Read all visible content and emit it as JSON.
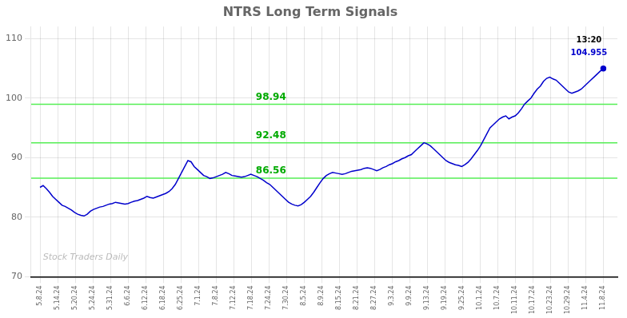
{
  "chart_data": {
    "type": "line",
    "title": "NTRS Long Term Signals",
    "color": "#0000cc",
    "grid": true,
    "x": [
      0,
      0.1788,
      0.3575,
      0.5363,
      0.7151,
      0.8939,
      1.0726,
      1.2514,
      1.4302,
      1.6089,
      1.7877,
      1.9665,
      2.1453,
      2.324,
      2.5028,
      2.6816,
      2.8603,
      3.0391,
      3.2179,
      3.3966,
      3.5754,
      3.7542,
      3.933,
      4.1117,
      4.2905,
      4.4693,
      4.648,
      4.8268,
      5.0056,
      5.1844,
      5.3631,
      5.5419,
      5.7207,
      5.8994,
      6.0782,
      6.257,
      6.4358,
      6.6145,
      6.7933,
      6.9721,
      7.1508,
      7.3296,
      7.5084,
      7.6872,
      7.8659,
      8.0447,
      8.2235,
      8.4022,
      8.581,
      8.7598,
      8.9385,
      9.1173,
      9.2961,
      9.4749,
      9.6536,
      9.8324,
      10.0112,
      10.1899,
      10.3687,
      10.5475,
      10.7263,
      10.905,
      11.0838,
      11.2626,
      11.4413,
      11.6201,
      11.7989,
      11.9777,
      12.1564,
      12.3352,
      12.514,
      12.6927,
      12.8715,
      13.0503,
      13.2291,
      13.4078,
      13.5866,
      13.7654,
      13.9441,
      14.1229,
      14.3017,
      14.4804,
      14.6592,
      14.838,
      15.0168,
      15.1955,
      15.3743,
      15.5531,
      15.7318,
      15.9106,
      16.0894,
      16.2682,
      16.4469,
      16.6257,
      16.8045,
      16.9832,
      17.162,
      17.3408,
      17.5196,
      17.6983,
      17.8771,
      18.0559,
      18.2346,
      18.4134,
      18.5922,
      18.7709,
      18.9497,
      19.1285,
      19.3073,
      19.486,
      19.6648,
      19.8436,
      20.0223,
      20.2011,
      20.3799,
      20.5587,
      20.7374,
      20.9162,
      21.095,
      21.2737,
      21.4525,
      21.6313,
      21.8101,
      21.9888,
      22.1676,
      22.3464,
      22.5251,
      22.7039,
      22.8827,
      23.0615,
      23.2402,
      23.419,
      23.5978,
      23.7765,
      23.9553,
      24.1341,
      24.3128,
      24.4916,
      24.6704,
      24.8492,
      25.0279,
      25.2067,
      25.3855,
      25.5642,
      25.743,
      25.9218,
      26.1006,
      26.2793,
      26.4581,
      26.6369,
      26.8156,
      26.9944,
      27.1732,
      27.352,
      27.5307,
      27.7095,
      27.8883,
      28.067,
      28.2458,
      28.4246,
      28.6034,
      28.7821,
      28.9609,
      29.1397,
      29.3184,
      29.4972,
      29.676,
      29.8547,
      30.0335,
      30.2123,
      30.3911,
      30.5698,
      30.7486,
      30.9274,
      31.1061,
      31.2849,
      31.4637,
      31.6425,
      31.8212,
      32
    ],
    "values": [
      85.0,
      85.3,
      84.8,
      84.2,
      83.5,
      83.0,
      82.5,
      82.0,
      81.8,
      81.5,
      81.2,
      80.8,
      80.5,
      80.3,
      80.2,
      80.5,
      81.0,
      81.3,
      81.5,
      81.7,
      81.8,
      82.0,
      82.2,
      82.3,
      82.5,
      82.4,
      82.3,
      82.2,
      82.3,
      82.5,
      82.7,
      82.8,
      83.0,
      83.2,
      83.5,
      83.3,
      83.2,
      83.4,
      83.6,
      83.8,
      84.0,
      84.3,
      84.8,
      85.5,
      86.5,
      87.5,
      88.5,
      89.5,
      89.3,
      88.5,
      88.0,
      87.5,
      87.0,
      86.8,
      86.5,
      86.6,
      86.8,
      87.0,
      87.2,
      87.5,
      87.3,
      87.0,
      86.9,
      86.8,
      86.7,
      86.8,
      87.0,
      87.2,
      87.0,
      86.8,
      86.5,
      86.2,
      85.8,
      85.5,
      85.0,
      84.5,
      84.0,
      83.5,
      83.0,
      82.5,
      82.2,
      82.0,
      81.9,
      82.1,
      82.5,
      83.0,
      83.5,
      84.2,
      85.0,
      85.8,
      86.5,
      87.0,
      87.3,
      87.5,
      87.4,
      87.3,
      87.2,
      87.3,
      87.5,
      87.7,
      87.8,
      87.9,
      88.0,
      88.2,
      88.3,
      88.2,
      88.0,
      87.8,
      88.0,
      88.3,
      88.5,
      88.8,
      89.0,
      89.3,
      89.5,
      89.8,
      90.0,
      90.3,
      90.5,
      91.0,
      91.5,
      92.0,
      92.5,
      92.3,
      92.0,
      91.5,
      91.0,
      90.5,
      90.0,
      89.5,
      89.2,
      89.0,
      88.8,
      88.7,
      88.5,
      88.8,
      89.2,
      89.8,
      90.5,
      91.2,
      92.0,
      93.0,
      94.0,
      95.0,
      95.5,
      96.0,
      96.5,
      96.8,
      97.0,
      96.5,
      96.8,
      97.0,
      97.5,
      98.2,
      99.0,
      99.5,
      100.0,
      100.8,
      101.5,
      102.0,
      102.8,
      103.3,
      103.5,
      103.2,
      103.0,
      102.5,
      102.0,
      101.5,
      101.0,
      100.8,
      101.0,
      101.2,
      101.5,
      102.0,
      102.5,
      103.0,
      103.5,
      104.0,
      104.5,
      104.955
    ],
    "xlim": [
      -0.5,
      32.8
    ],
    "xticks": [
      {
        "value": 0,
        "label": "5.8.24"
      },
      {
        "value": 1,
        "label": "5.14.24"
      },
      {
        "value": 2,
        "label": "5.20.24"
      },
      {
        "value": 3,
        "label": "5.24.24"
      },
      {
        "value": 4,
        "label": "5.31.24"
      },
      {
        "value": 5,
        "label": "6.6.24"
      },
      {
        "value": 6,
        "label": "6.12.24"
      },
      {
        "value": 7,
        "label": "6.18.24"
      },
      {
        "value": 8,
        "label": "6.25.24"
      },
      {
        "value": 9,
        "label": "7.1.24"
      },
      {
        "value": 10,
        "label": "7.8.24"
      },
      {
        "value": 11,
        "label": "7.12.24"
      },
      {
        "value": 12,
        "label": "7.18.24"
      },
      {
        "value": 13,
        "label": "7.24.24"
      },
      {
        "value": 14,
        "label": "7.30.24"
      },
      {
        "value": 15,
        "label": "8.5.24"
      },
      {
        "value": 16,
        "label": "8.9.24"
      },
      {
        "value": 17,
        "label": "8.15.24"
      },
      {
        "value": 18,
        "label": "8.21.24"
      },
      {
        "value": 19,
        "label": "8.27.24"
      },
      {
        "value": 20,
        "label": "9.3.24"
      },
      {
        "value": 21,
        "label": "9.9.24"
      },
      {
        "value": 22,
        "label": "9.13.24"
      },
      {
        "value": 23,
        "label": "9.19.24"
      },
      {
        "value": 24,
        "label": "9.25.24"
      },
      {
        "value": 25,
        "label": "10.1.24"
      },
      {
        "value": 26,
        "label": "10.7.24"
      },
      {
        "value": 27,
        "label": "10.11.24"
      },
      {
        "value": 28,
        "label": "10.17.24"
      },
      {
        "value": 29,
        "label": "10.23.24"
      },
      {
        "value": 30,
        "label": "10.29.24"
      },
      {
        "value": 31,
        "label": "11.4.24"
      },
      {
        "value": 32,
        "label": "11.8.24"
      }
    ],
    "ylim": [
      70,
      112
    ],
    "yticks": [
      70,
      80,
      90,
      100,
      110
    ],
    "hlines": [
      {
        "value": 86.56,
        "label": "86.56",
        "color": "#55ee55",
        "label_color": "#00aa00"
      },
      {
        "value": 92.48,
        "label": "92.48",
        "color": "#55ee55",
        "label_color": "#00aa00"
      },
      {
        "value": 98.94,
        "label": "98.94",
        "color": "#55ee55",
        "label_color": "#00aa00"
      }
    ],
    "annotations": [
      {
        "text": "13:20",
        "color": "#000000"
      },
      {
        "text": "104.955",
        "color": "#0000cc"
      }
    ],
    "watermark": {
      "text": "Stock Traders Daily",
      "color": "#bbbbbb"
    }
  }
}
